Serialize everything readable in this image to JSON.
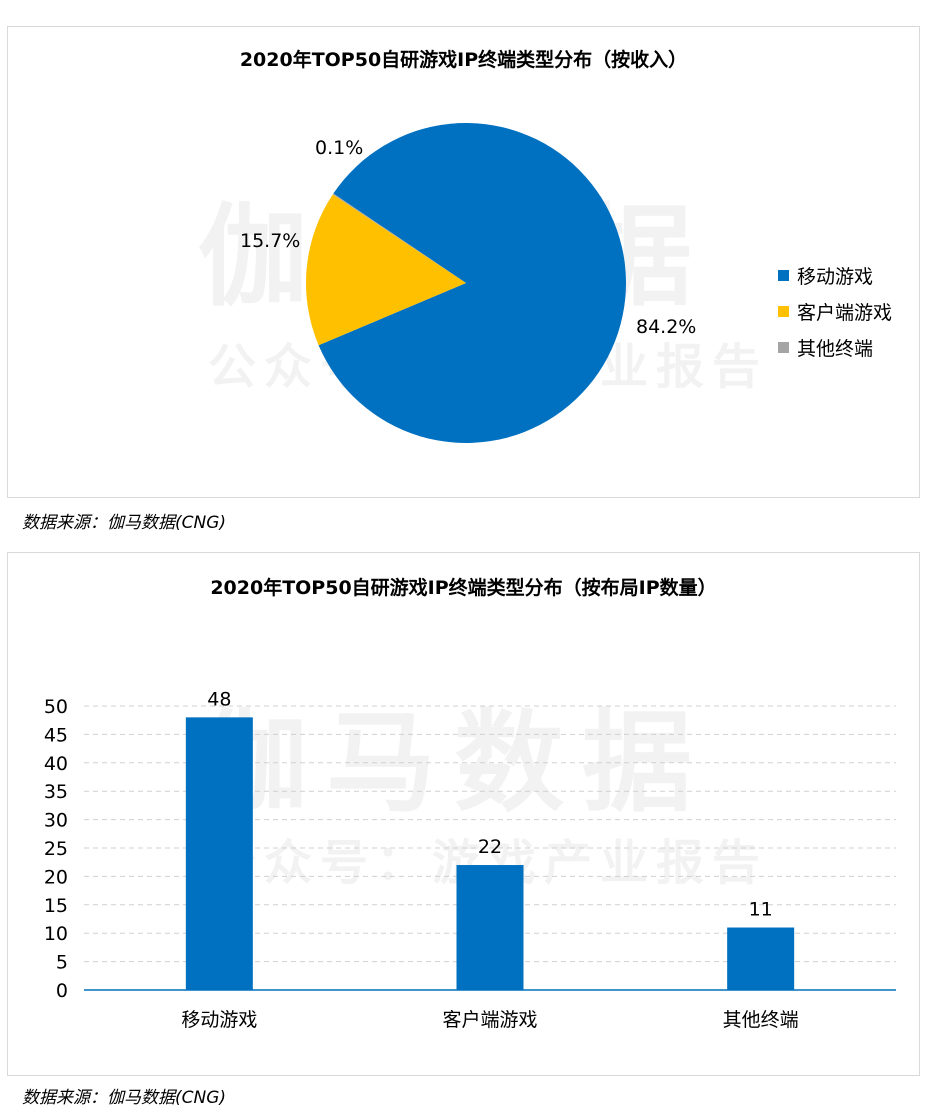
{
  "watermark": {
    "main": "伽马数据",
    "sub": "公众号：游戏产业报告"
  },
  "charts": {
    "pie": {
      "title": "2020年TOP50自研游戏IP终端类型分布（按收入）",
      "source": "数据来源：伽马数据(CNG)"
    },
    "bar": {
      "title": "2020年TOP50自研游戏IP终端类型分布（按布局IP数量）",
      "source": "数据来源：伽马数据(CNG)"
    }
  },
  "chart_data": [
    {
      "type": "pie",
      "title": "2020年TOP50自研游戏IP终端类型分布（按收入）",
      "categories": [
        "移动游戏",
        "客户端游戏",
        "其他终端"
      ],
      "values": [
        84.2,
        15.7,
        0.1
      ],
      "labels": [
        "84.2%",
        "15.7%",
        "0.1%"
      ],
      "colors": [
        "#0070c0",
        "#ffc000",
        "#a5a5a5"
      ],
      "legend": "right"
    },
    {
      "type": "bar",
      "title": "2020年TOP50自研游戏IP终端类型分布（按布局IP数量）",
      "categories": [
        "移动游戏",
        "客户端游戏",
        "其他终端"
      ],
      "values": [
        48,
        22,
        11
      ],
      "ylim": [
        0,
        50
      ],
      "yticks": [
        0,
        5,
        10,
        15,
        20,
        25,
        30,
        35,
        40,
        45,
        50
      ],
      "color": "#0070c0",
      "grid": true
    }
  ]
}
